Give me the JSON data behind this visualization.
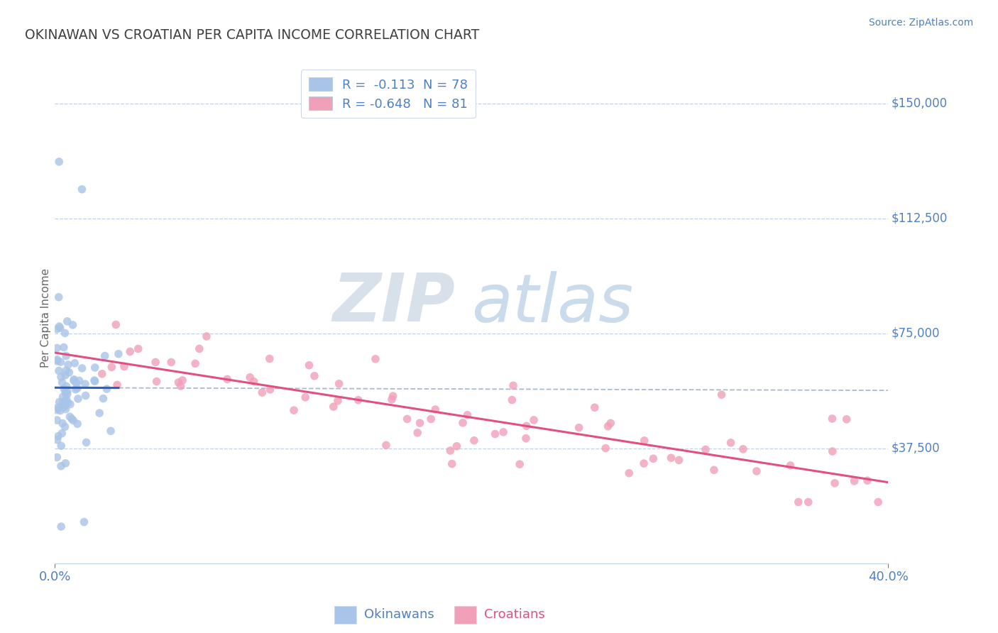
{
  "title": "OKINAWAN VS CROATIAN PER CAPITA INCOME CORRELATION CHART",
  "source": "Source: ZipAtlas.com",
  "ylabel": "Per Capita Income",
  "ytick_values": [
    150000,
    112500,
    75000,
    37500
  ],
  "ytick_labels": [
    "$150,000",
    "$112,500",
    "$75,000",
    "$37,500"
  ],
  "ylim": [
    0,
    160000
  ],
  "xlim": [
    0.0,
    0.4
  ],
  "legend_label1": "R =  -0.113  N = 78",
  "legend_label2": "R = -0.648   N = 81",
  "color_okinawan": "#a8c4e8",
  "color_croatian": "#f0a0b8",
  "color_blue_line": "#3060c0",
  "color_pink_line": "#e05080",
  "color_axis": "#5080c0",
  "color_title": "#404040",
  "color_grid": "#c0d0e8",
  "watermark_zip": "ZIP",
  "watermark_atlas": "atlas",
  "bottom_legend_okinawans": "Okinawans",
  "bottom_legend_croatians": "Croatians"
}
